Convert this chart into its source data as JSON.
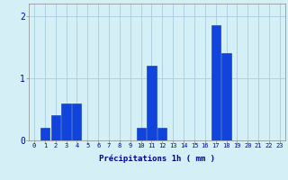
{
  "categories": [
    0,
    1,
    2,
    3,
    4,
    5,
    6,
    7,
    8,
    9,
    10,
    11,
    12,
    13,
    14,
    15,
    16,
    17,
    18,
    19,
    20,
    21,
    22,
    23
  ],
  "values": [
    0.0,
    0.2,
    0.4,
    0.6,
    0.6,
    0.0,
    0.0,
    0.0,
    0.0,
    0.0,
    0.2,
    1.2,
    0.2,
    0.0,
    0.0,
    0.0,
    0.0,
    1.85,
    1.4,
    0.0,
    0.0,
    0.0,
    0.0,
    0.0
  ],
  "bar_color": "#1144dd",
  "bar_edge_color": "#0033bb",
  "background_color": "#d4eff5",
  "grid_color": "#aaccdd",
  "xlabel": "Précipitations 1h ( mm )",
  "xlabel_color": "#00008b",
  "xlabel_fontsize": 6.5,
  "tick_color": "#0000aa",
  "tick_fontsize": 5.0,
  "ytick_color": "#0000aa",
  "ytick_fontsize": 7.0,
  "ylim": [
    0,
    2.2
  ],
  "yticks": [
    0,
    1,
    2
  ]
}
